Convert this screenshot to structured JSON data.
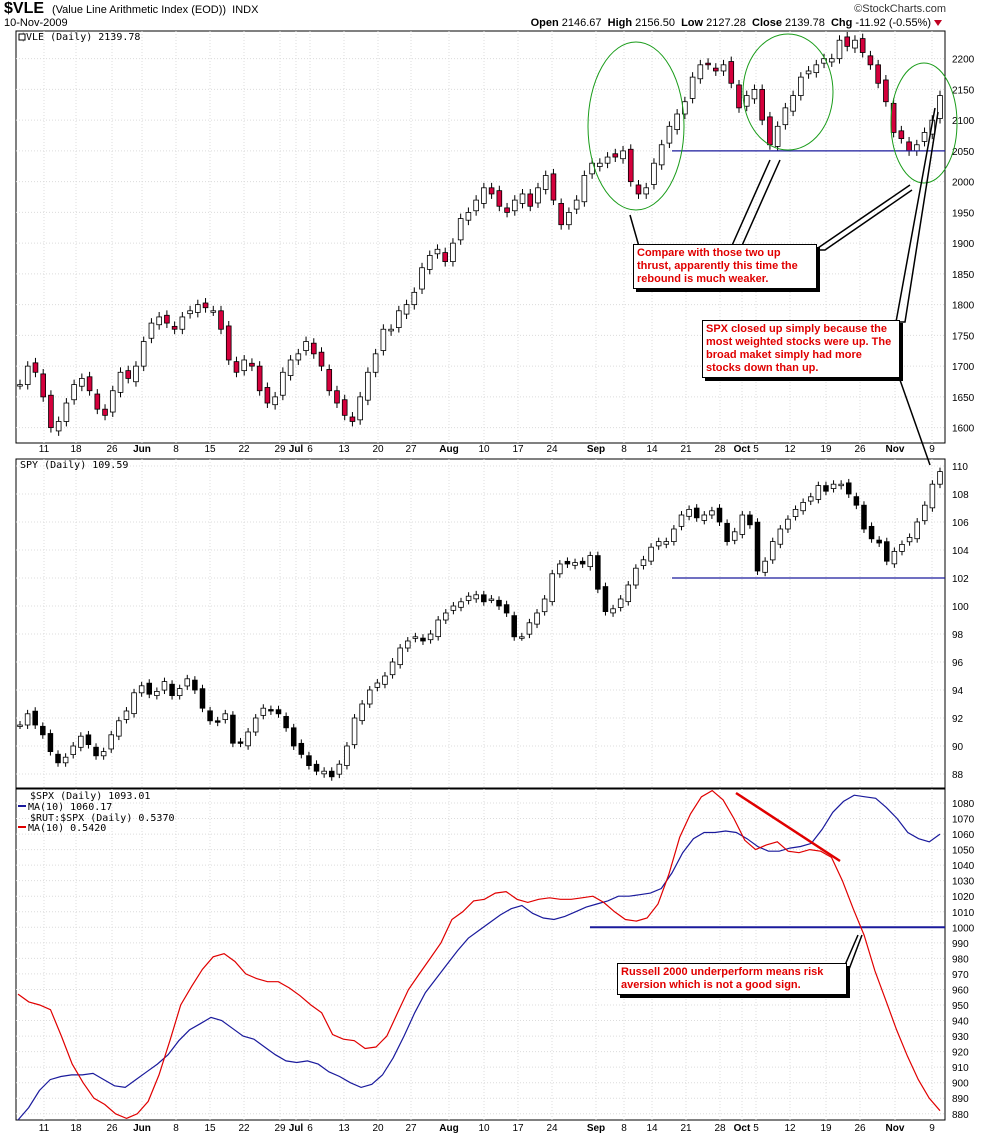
{
  "header": {
    "symbol": "$VLE",
    "name": "(Value Line Arithmetic Index (EOD))",
    "exchange": "INDX",
    "date": "10-Nov-2009",
    "logo": "©StockCharts.com",
    "quote": {
      "open_label": "Open",
      "open": "2146.67",
      "high_label": "High",
      "high": "2156.50",
      "low_label": "Low",
      "low": "2127.28",
      "close_label": "Close",
      "close": "2139.78",
      "chg_label": "Chg",
      "chg": "-11.92 (-0.55%)"
    }
  },
  "colors": {
    "up": "#ffffff",
    "down_vle": "#d4003c",
    "down_spy": "#000000",
    "ma_spx": "#1a1a9c",
    "ma_rut": "#e00000",
    "support": "#1a1a9c",
    "ellipse": "#1a9c1a"
  },
  "annotations": {
    "thrust": "Compare with those two up thrust, apparently this time the rebound is much weaker.",
    "spx": "SPX closed up simply because the most weighted stocks were up. The broad maket simply had more stocks down than up.",
    "russell": "Russell 2000 underperform means risk aversion which is not a good sign."
  },
  "x_axis": {
    "labels": [
      "11",
      "18",
      "26",
      "Jun",
      "8",
      "15",
      "22",
      "29",
      "Jul",
      "6",
      "13",
      "20",
      "27",
      "Aug",
      "10",
      "17",
      "24",
      "Sep",
      "8",
      "14",
      "21",
      "28",
      "Oct",
      "5",
      "12",
      "19",
      "26",
      "Nov",
      "9"
    ],
    "bold": [
      "Jun",
      "Jul",
      "Aug",
      "Sep",
      "Oct",
      "Nov"
    ]
  },
  "chart_data": [
    {
      "type": "candlestick",
      "title": "$VLE (Daily) 2139.78",
      "ylim": [
        1575,
        2245
      ],
      "yticks": [
        1600,
        1650,
        1700,
        1750,
        1800,
        1850,
        1900,
        1950,
        2000,
        2050,
        2100,
        2150,
        2200
      ],
      "support_level": 2050,
      "close": [
        1670,
        1700,
        1690,
        1650,
        1600,
        1610,
        1640,
        1670,
        1680,
        1660,
        1630,
        1620,
        1660,
        1690,
        1680,
        1700,
        1740,
        1770,
        1780,
        1770,
        1760,
        1780,
        1790,
        1800,
        1795,
        1790,
        1760,
        1710,
        1690,
        1710,
        1700,
        1660,
        1640,
        1650,
        1690,
        1710,
        1720,
        1740,
        1720,
        1700,
        1660,
        1640,
        1620,
        1610,
        1650,
        1690,
        1720,
        1760,
        1760,
        1790,
        1800,
        1820,
        1860,
        1880,
        1890,
        1870,
        1900,
        1940,
        1950,
        1970,
        1990,
        1980,
        1960,
        1950,
        1970,
        1980,
        1960,
        1990,
        2010,
        1970,
        1930,
        1950,
        1970,
        2010,
        2030,
        2030,
        2040,
        2040,
        2050,
        2000,
        1980,
        1990,
        2030,
        2060,
        2090,
        2110,
        2130,
        2170,
        2190,
        2190,
        2180,
        2190,
        2160,
        2120,
        2140,
        2150,
        2100,
        2060,
        2090,
        2120,
        2140,
        2170,
        2180,
        2190,
        2200,
        2200,
        2230,
        2220,
        2230,
        2210,
        2190,
        2160,
        2130,
        2080,
        2070,
        2050,
        2060,
        2080,
        2100,
        2140
      ],
      "ma_note": ""
    },
    {
      "type": "candlestick",
      "title": "SPY (Daily) 109.59",
      "ylim": [
        87,
        110.5
      ],
      "yticks": [
        88,
        90,
        92,
        94,
        96,
        98,
        100,
        102,
        104,
        106,
        108,
        110
      ],
      "support_level": 102,
      "close": [
        91.5,
        92.3,
        91.5,
        90.8,
        89.6,
        88.8,
        89.2,
        90.0,
        90.7,
        90.1,
        89.3,
        89.6,
        90.8,
        91.8,
        92.5,
        93.8,
        94.3,
        93.7,
        93.9,
        94.6,
        93.6,
        94.1,
        94.8,
        94.0,
        92.7,
        91.8,
        91.7,
        92.3,
        90.2,
        90.2,
        91.0,
        92.0,
        92.7,
        92.5,
        92.3,
        91.3,
        90.0,
        89.4,
        88.6,
        88.2,
        88.2,
        87.8,
        88.7,
        90.0,
        92.0,
        93.0,
        94.0,
        94.5,
        95.0,
        96.0,
        97.0,
        97.5,
        97.8,
        97.5,
        98.0,
        99.0,
        99.5,
        100.0,
        100.3,
        100.7,
        100.8,
        100.3,
        100.5,
        100.0,
        99.5,
        97.8,
        97.8,
        98.8,
        99.5,
        100.5,
        102.3,
        103.0,
        103.0,
        103.1,
        103.0,
        103.6,
        101.2,
        99.6,
        99.8,
        100.5,
        101.5,
        102.7,
        103.3,
        104.2,
        104.6,
        104.6,
        105.5,
        106.5,
        106.9,
        106.3,
        106.5,
        106.8,
        106.0,
        104.6,
        105.3,
        106.5,
        105.8,
        102.5,
        103.2,
        104.6,
        105.5,
        106.2,
        106.9,
        107.4,
        107.8,
        108.6,
        108.2,
        108.7,
        108.7,
        108.0,
        107.2,
        105.5,
        104.8,
        104.5,
        103.2,
        103.9,
        104.4,
        104.9,
        106.0,
        107.2,
        108.7,
        109.6
      ],
      "ma_note": ""
    },
    {
      "type": "line",
      "title": "$SPX (Daily) 1093.01",
      "ylim": [
        876,
        1089
      ],
      "yticks": [
        880,
        890,
        900,
        910,
        920,
        930,
        940,
        950,
        960,
        970,
        980,
        990,
        1000,
        1010,
        1020,
        1030,
        1040,
        1050,
        1060,
        1070,
        1080
      ],
      "support_level": 1000,
      "series": [
        {
          "name": "MA(10) 1060.17",
          "color_key": "ma_spx",
          "values": [
            876,
            884,
            895,
            902,
            904,
            905,
            905,
            906,
            902,
            898,
            897,
            902,
            907,
            912,
            918,
            927,
            934,
            938,
            942,
            940,
            935,
            930,
            928,
            923,
            918,
            914,
            913,
            914,
            912,
            907,
            904,
            900,
            897,
            899,
            905,
            916,
            930,
            945,
            958,
            967,
            976,
            985,
            993,
            998,
            1003,
            1008,
            1012,
            1014,
            1009,
            1006,
            1005,
            1007,
            1010,
            1013,
            1015,
            1017,
            1020,
            1020,
            1021,
            1022,
            1025,
            1035,
            1048,
            1057,
            1061,
            1061,
            1062,
            1061,
            1057,
            1052,
            1049,
            1049,
            1051,
            1052,
            1054,
            1063,
            1074,
            1081,
            1085,
            1084,
            1083,
            1077,
            1070,
            1061,
            1057,
            1055,
            1060
          ]
        },
        {
          "name": "MA(10) 0.5420",
          "subtitle": "$RUT:$SPX (Daily) 0.5370",
          "color_key": "ma_rut",
          "values": [
            957,
            952,
            950,
            947,
            930,
            912,
            900,
            890,
            886,
            880,
            877,
            880,
            888,
            905,
            927,
            950,
            962,
            973,
            981,
            983,
            978,
            970,
            967,
            965,
            965,
            961,
            956,
            950,
            945,
            931,
            928,
            927,
            922,
            923,
            930,
            945,
            960,
            970,
            980,
            990,
            1005,
            1010,
            1017,
            1018,
            1022,
            1023,
            1018,
            1016,
            1018,
            1019,
            1018,
            1018,
            1019,
            1020,
            1016,
            1010,
            1005,
            1004,
            1006,
            1015,
            1034,
            1058,
            1073,
            1084,
            1088,
            1082,
            1070,
            1056,
            1050,
            1053,
            1055,
            1049,
            1048,
            1050,
            1049,
            1045,
            1030,
            1012,
            995,
            972,
            953,
            934,
            917,
            902,
            890,
            882
          ]
        }
      ]
    }
  ]
}
